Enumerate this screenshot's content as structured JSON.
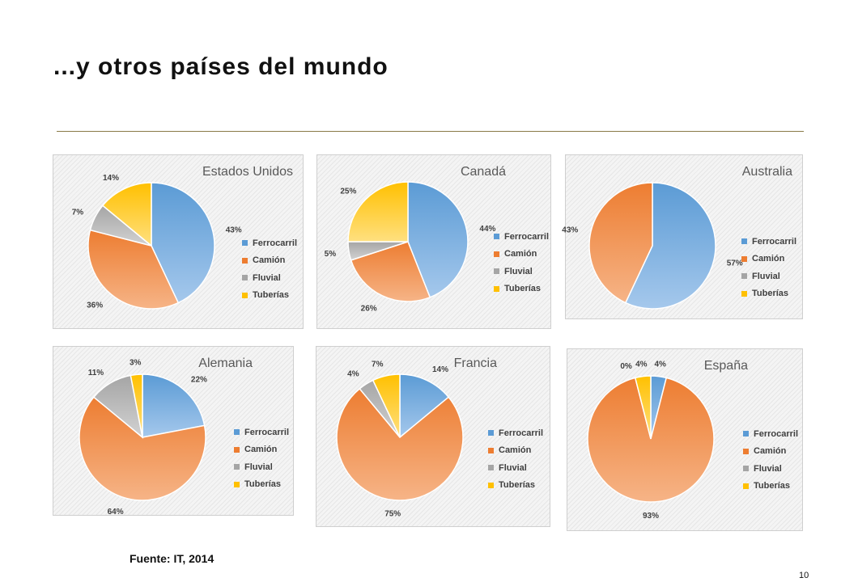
{
  "title": "...y otros países del mundo",
  "source": "Fuente: IT, 2014",
  "page_number": "10",
  "colors": {
    "Ferrocarril": "#5b9bd5",
    "Camión": "#ed7d31",
    "Fluvial": "#a5a5a5",
    "Tuberías": "#ffc000"
  },
  "chart_data": [
    {
      "type": "pie",
      "title": "Estados Unidos",
      "categories": [
        "Ferrocarril",
        "Camión",
        "Fluvial",
        "Tuberías"
      ],
      "values": [
        43,
        36,
        7,
        14
      ],
      "labels": [
        "43%",
        "36%",
        "7%",
        "14%"
      ]
    },
    {
      "type": "pie",
      "title": "Canadá",
      "categories": [
        "Ferrocarril",
        "Camión",
        "Fluvial",
        "Tuberías"
      ],
      "values": [
        44,
        26,
        5,
        25
      ],
      "labels": [
        "44%",
        "26%",
        "5%",
        "25%"
      ]
    },
    {
      "type": "pie",
      "title": "Australia",
      "categories": [
        "Ferrocarril",
        "Camión",
        "Fluvial",
        "Tuberías"
      ],
      "values": [
        57,
        43,
        0,
        0
      ],
      "labels": [
        "57%",
        "43%",
        "",
        ""
      ]
    },
    {
      "type": "pie",
      "title": "Alemania",
      "categories": [
        "Ferrocarril",
        "Camión",
        "Fluvial",
        "Tuberías"
      ],
      "values": [
        22,
        64,
        11,
        3
      ],
      "labels": [
        "22%",
        "64%",
        "11%",
        "3%"
      ]
    },
    {
      "type": "pie",
      "title": "Francia",
      "categories": [
        "Ferrocarril",
        "Camión",
        "Fluvial",
        "Tuberías"
      ],
      "values": [
        14,
        75,
        4,
        7
      ],
      "labels": [
        "14%",
        "75%",
        "4%",
        "7%"
      ]
    },
    {
      "type": "pie",
      "title": "España",
      "categories": [
        "Ferrocarril",
        "Camión",
        "Fluvial",
        "Tuberías"
      ],
      "values": [
        4,
        93,
        0,
        4
      ],
      "labels": [
        "4%",
        "93%",
        "0%",
        "4%"
      ]
    }
  ]
}
